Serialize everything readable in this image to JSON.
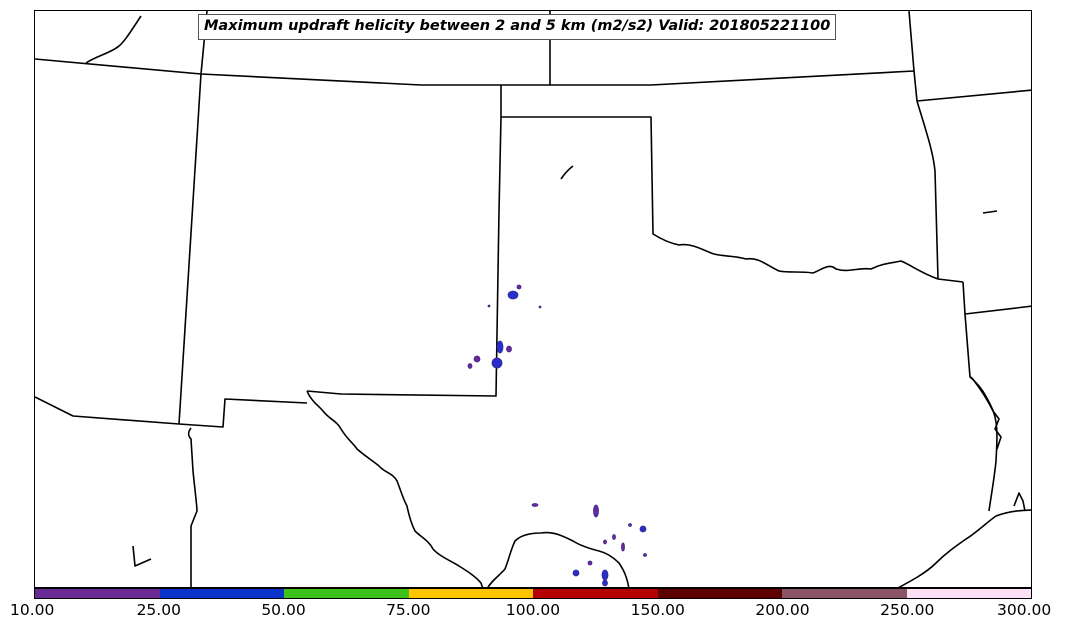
{
  "title": "Maximum updraft helicity between 2 and 5 km (m2/s2) Valid: 201805221100",
  "colorbar": {
    "labels": [
      "10.00",
      "25.00",
      "50.00",
      "75.00",
      "100.00",
      "150.00",
      "200.00",
      "250.00",
      "300.00"
    ],
    "colors": [
      "#6a2a96",
      "#0a33c9",
      "#3cc21a",
      "#ffc400",
      "#b50000",
      "#5c0000",
      "#8a5566",
      "#fbe0f6"
    ]
  },
  "map": {
    "border_color": "#000000",
    "helicity_colors": {
      "low": "#6a2a96",
      "mid": "#2430c8"
    }
  }
}
